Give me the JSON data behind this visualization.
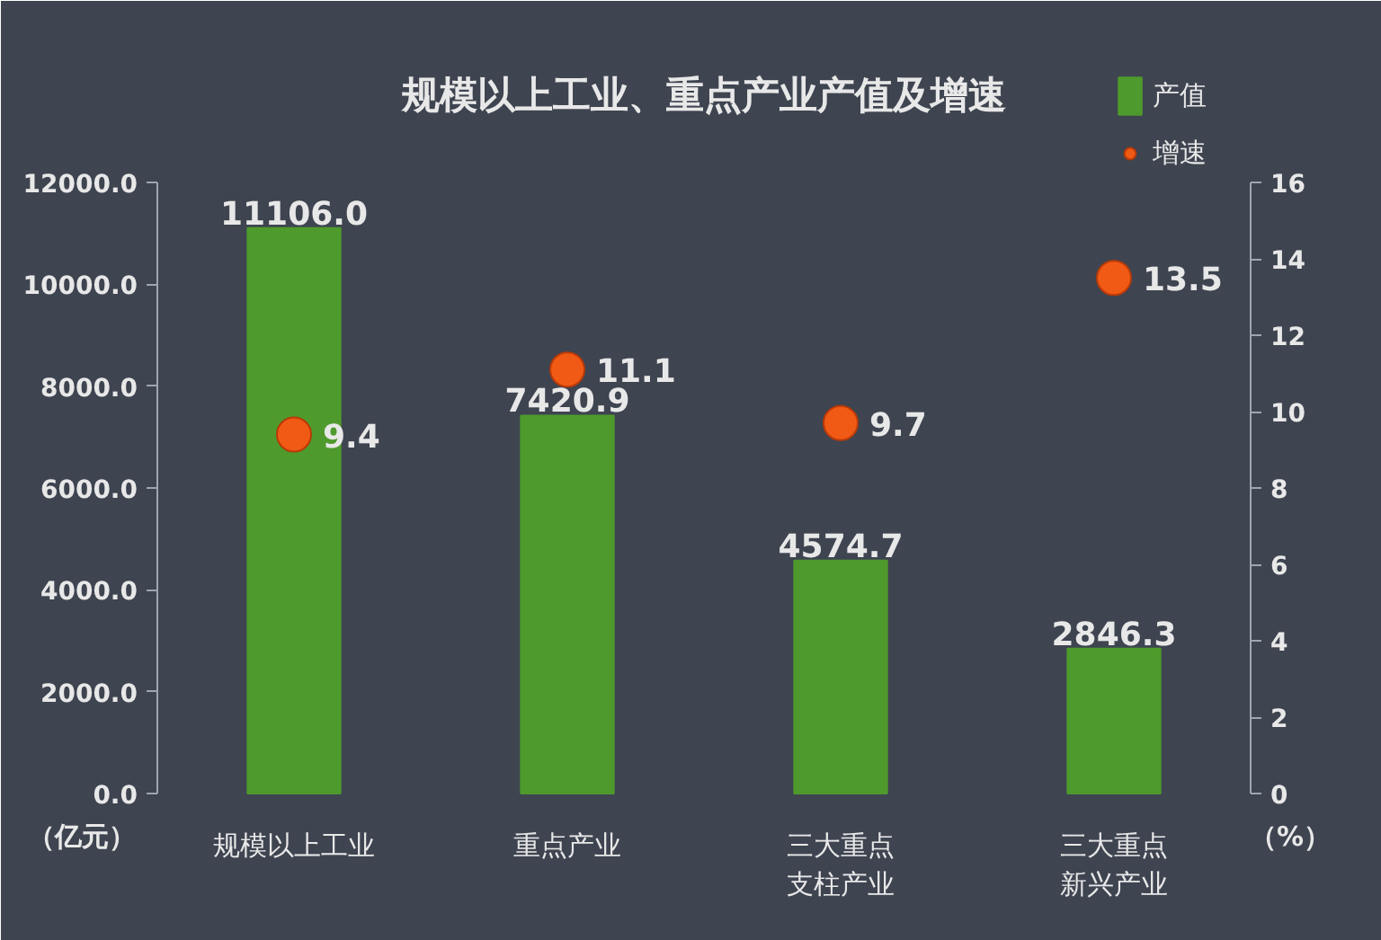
{
  "chart_data": {
    "type": "bar",
    "title": "规模以上工业、重点产业产值及增速",
    "categories": [
      "规模以上工业",
      "重点产业",
      "三大重点支柱产业",
      "三大重点新兴产业"
    ],
    "ylabel": "（亿元）",
    "y2label": "（%）",
    "ylim": [
      0,
      12000
    ],
    "yticks": [
      {
        "value": 0,
        "label": "0.0"
      },
      {
        "value": 2000,
        "label": "2000.0"
      },
      {
        "value": 4000,
        "label": "4000.0"
      },
      {
        "value": 6000,
        "label": "6000.0"
      },
      {
        "value": 8000,
        "label": "8000.0"
      },
      {
        "value": 10000,
        "label": "10000.0"
      },
      {
        "value": 12000,
        "label": "12000.0"
      }
    ],
    "y2lim": [
      0,
      16
    ],
    "y2ticks": [
      0,
      2,
      4,
      6,
      8,
      10,
      12,
      14,
      16
    ],
    "grid": false,
    "legend": "top right",
    "marker": "circle",
    "series": [
      {
        "name": "产值",
        "color": "#4e9a2c",
        "values": [
          11106.0,
          7420.9,
          4574.7,
          2846.3
        ],
        "value_labels": [
          "11106.0",
          "7420.9",
          "4574.7",
          "2846.3"
        ]
      },
      {
        "name": "增速",
        "type": "scatter",
        "axis": "y2",
        "color": "#f05a14",
        "values": [
          9.4,
          11.1,
          9.7,
          13.5
        ],
        "value_labels": [
          "9.4",
          "11.1",
          "9.7",
          "13.5"
        ]
      }
    ]
  }
}
